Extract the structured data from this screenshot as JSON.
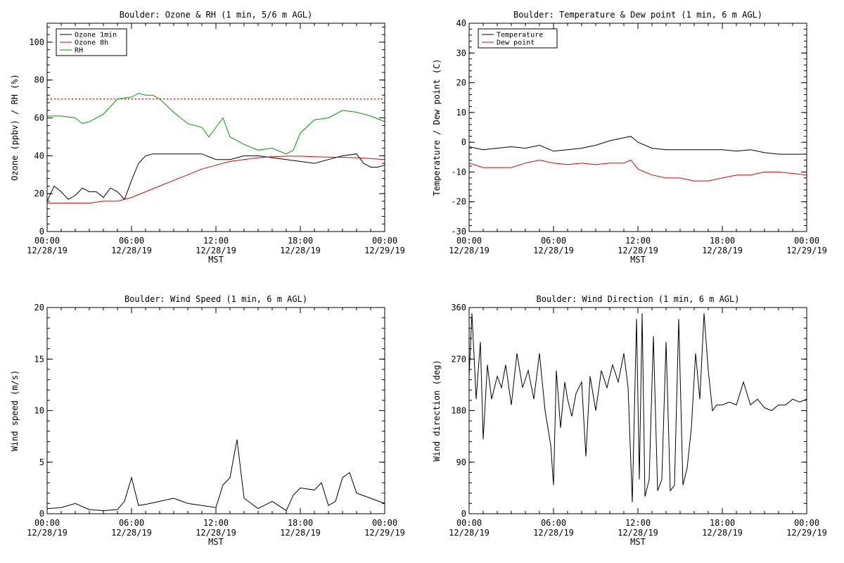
{
  "chart_data": [
    {
      "type": "line",
      "title": "Boulder: Ozone & RH (1 min, 5/6 m AGL)",
      "xlabel": "MST",
      "ylabel": "Ozone (ppbv) / RH (%)",
      "xlim": [
        0,
        24
      ],
      "ylim": [
        0,
        110
      ],
      "yticks": [
        0,
        20,
        40,
        60,
        80,
        100
      ],
      "xticks": [
        0,
        6,
        12,
        18,
        24
      ],
      "xtick_labels": [
        [
          "00:00",
          "12/28/19"
        ],
        [
          "06:00",
          "12/28/19"
        ],
        [
          "12:00",
          "12/28/19"
        ],
        [
          "18:00",
          "12/28/19"
        ],
        [
          "00:00",
          "12/29/19"
        ]
      ],
      "legend_position": "top-left",
      "reference_lines": [
        {
          "y": 70,
          "color": "#dd0000",
          "style": "dotted"
        }
      ],
      "series": [
        {
          "name": "Ozone 1min",
          "color": "#000000",
          "x": [
            0,
            0.5,
            1,
            1.5,
            2,
            2.5,
            3,
            3.5,
            4,
            4.5,
            5,
            5.5,
            6,
            6.5,
            7,
            7.5,
            8,
            9,
            10,
            11,
            12,
            13,
            14,
            15,
            16,
            17,
            18,
            19,
            20,
            21,
            22,
            22.5,
            23,
            23.5,
            24
          ],
          "y": [
            16,
            24,
            21,
            17,
            19,
            23,
            21,
            21,
            18,
            23,
            21,
            17,
            27,
            36,
            40,
            41,
            41,
            41,
            41,
            41,
            38,
            38,
            40,
            40,
            39,
            38,
            37,
            36,
            38,
            40,
            41,
            36,
            34,
            34,
            35
          ]
        },
        {
          "name": "Ozone 8h",
          "color": "#dd0000",
          "x": [
            0,
            1,
            2,
            3,
            4,
            5,
            6,
            7,
            8,
            9,
            10,
            11,
            12,
            13,
            14,
            15,
            16,
            17,
            18,
            19,
            20,
            21,
            22,
            23,
            24
          ],
          "y": [
            15,
            15,
            15,
            15,
            16,
            16,
            18,
            21,
            24,
            27,
            30,
            33,
            35,
            37,
            38,
            39,
            39.5,
            39.8,
            39.8,
            39.5,
            39.3,
            39.2,
            39,
            38.5,
            38
          ]
        },
        {
          "name": "RH",
          "color": "#009900",
          "x": [
            0,
            1,
            2,
            2.5,
            3,
            4,
            5,
            6,
            6.5,
            7,
            7.5,
            8,
            9,
            10,
            11,
            11.5,
            12,
            12.5,
            13,
            14,
            15,
            16,
            17,
            17.5,
            18,
            19,
            20,
            21,
            22,
            23,
            24
          ],
          "y": [
            61,
            61,
            60,
            57,
            58,
            62,
            70,
            71,
            73,
            72,
            72,
            70,
            63,
            57,
            55,
            50,
            55,
            60,
            50,
            46,
            43,
            44,
            41,
            43,
            52,
            59,
            60,
            64,
            63,
            61,
            58
          ]
        }
      ]
    },
    {
      "type": "line",
      "title": "Boulder: Temperature & Dew point (1 min, 6 m AGL)",
      "xlabel": "MST",
      "ylabel": "Temperature / Dew point (C)",
      "xlim": [
        0,
        24
      ],
      "ylim": [
        -30,
        40
      ],
      "yticks": [
        -30,
        -20,
        -10,
        0,
        10,
        20,
        30,
        40
      ],
      "xticks": [
        0,
        6,
        12,
        18,
        24
      ],
      "xtick_labels": [
        [
          "00:00",
          "12/28/19"
        ],
        [
          "06:00",
          "12/28/19"
        ],
        [
          "12:00",
          "12/28/19"
        ],
        [
          "18:00",
          "12/28/19"
        ],
        [
          "00:00",
          "12/29/19"
        ]
      ],
      "legend_position": "top-left",
      "series": [
        {
          "name": "Temperature",
          "color": "#000000",
          "x": [
            0,
            1,
            2,
            3,
            4,
            5,
            6,
            7,
            8,
            9,
            10,
            11,
            11.5,
            12,
            13,
            14,
            15,
            16,
            17,
            18,
            19,
            20,
            21,
            22,
            23,
            24
          ],
          "y": [
            -1.5,
            -2.5,
            -2,
            -1.5,
            -2,
            -1,
            -3,
            -2.5,
            -2,
            -1,
            0.5,
            1.5,
            2,
            0,
            -2,
            -2.5,
            -2.5,
            -2.5,
            -2.5,
            -2.5,
            -3,
            -2.5,
            -3.5,
            -4,
            -4,
            -4
          ]
        },
        {
          "name": "Dew point",
          "color": "#dd0000",
          "x": [
            0,
            1,
            2,
            3,
            4,
            5,
            6,
            7,
            8,
            9,
            10,
            11,
            11.5,
            12,
            13,
            14,
            15,
            16,
            17,
            18,
            19,
            20,
            21,
            22,
            23,
            24
          ],
          "y": [
            -7,
            -8.5,
            -8.5,
            -8.5,
            -7,
            -6,
            -7,
            -7.5,
            -7,
            -7.5,
            -7,
            -7,
            -6,
            -9,
            -11,
            -12,
            -12,
            -13,
            -13,
            -12,
            -11,
            -11,
            -10,
            -10,
            -10.5,
            -11
          ]
        }
      ]
    },
    {
      "type": "line",
      "title": "Boulder: Wind Speed (1 min, 6 m AGL)",
      "xlabel": "MST",
      "ylabel": "Wind speed (m/s)",
      "xlim": [
        0,
        24
      ],
      "ylim": [
        0,
        20
      ],
      "yticks": [
        0,
        5,
        10,
        15,
        20
      ],
      "xticks": [
        0,
        6,
        12,
        18,
        24
      ],
      "xtick_labels": [
        [
          "00:00",
          "12/28/19"
        ],
        [
          "06:00",
          "12/28/19"
        ],
        [
          "12:00",
          "12/28/19"
        ],
        [
          "18:00",
          "12/28/19"
        ],
        [
          "00:00",
          "12/29/19"
        ]
      ],
      "series": [
        {
          "color": "#000000",
          "x": [
            0,
            1,
            2,
            3,
            4,
            5,
            5.5,
            6,
            6.5,
            7,
            8,
            9,
            10,
            11,
            12,
            12.5,
            13,
            13.5,
            14,
            15,
            16,
            17,
            17.5,
            18,
            19,
            19.5,
            20,
            20.5,
            21,
            21.5,
            22,
            23,
            24
          ],
          "y": [
            0.5,
            0.6,
            1.0,
            0.4,
            0.3,
            0.4,
            1.2,
            3.5,
            0.8,
            0.9,
            1.2,
            1.5,
            1.0,
            0.8,
            0.6,
            2.8,
            3.5,
            7.2,
            1.5,
            0.5,
            1.2,
            0.3,
            1.8,
            2.5,
            2.3,
            3.0,
            0.8,
            1.2,
            3.5,
            4.0,
            2.0,
            1.5,
            1.0
          ]
        }
      ]
    },
    {
      "type": "line",
      "title": "Boulder: Wind Direction (1 min, 6 m AGL)",
      "xlabel": "MST",
      "ylabel": "Wind direction (deg)",
      "xlim": [
        0,
        24
      ],
      "ylim": [
        0,
        360
      ],
      "yticks": [
        0,
        90,
        180,
        270,
        360
      ],
      "xticks": [
        0,
        6,
        12,
        18,
        24
      ],
      "xtick_labels": [
        [
          "00:00",
          "12/28/19"
        ],
        [
          "06:00",
          "12/28/19"
        ],
        [
          "12:00",
          "12/28/19"
        ],
        [
          "18:00",
          "12/28/19"
        ],
        [
          "00:00",
          "12/29/19"
        ]
      ],
      "series": [
        {
          "color": "#000000",
          "x": [
            0,
            0.2,
            0.5,
            0.8,
            1.0,
            1.3,
            1.6,
            2.0,
            2.3,
            2.6,
            3.0,
            3.4,
            3.8,
            4.2,
            4.6,
            5.0,
            5.4,
            5.8,
            6.0,
            6.2,
            6.5,
            6.8,
            7.0,
            7.3,
            7.6,
            8.0,
            8.3,
            8.6,
            9.0,
            9.4,
            9.8,
            10.2,
            10.6,
            11.0,
            11.3,
            11.6,
            11.9,
            12.1,
            12.3,
            12.5,
            12.8,
            13.1,
            13.4,
            13.7,
            14.0,
            14.3,
            14.6,
            14.9,
            15.2,
            15.5,
            15.8,
            16.1,
            16.4,
            16.7,
            17.0,
            17.3,
            17.6,
            18.0,
            18.5,
            19.0,
            19.5,
            20.0,
            20.5,
            21.0,
            21.5,
            22.0,
            22.5,
            23.0,
            23.5,
            24.0
          ],
          "y": [
            240,
            350,
            200,
            300,
            130,
            260,
            200,
            240,
            220,
            260,
            190,
            280,
            220,
            250,
            200,
            280,
            180,
            120,
            50,
            250,
            150,
            230,
            200,
            170,
            210,
            230,
            100,
            240,
            180,
            250,
            220,
            260,
            230,
            280,
            220,
            20,
            340,
            60,
            350,
            30,
            60,
            310,
            40,
            60,
            300,
            40,
            50,
            340,
            50,
            80,
            150,
            280,
            200,
            350,
            250,
            180,
            190,
            190,
            195,
            190,
            230,
            190,
            200,
            185,
            180,
            190,
            190,
            200,
            195,
            200
          ]
        }
      ]
    }
  ]
}
